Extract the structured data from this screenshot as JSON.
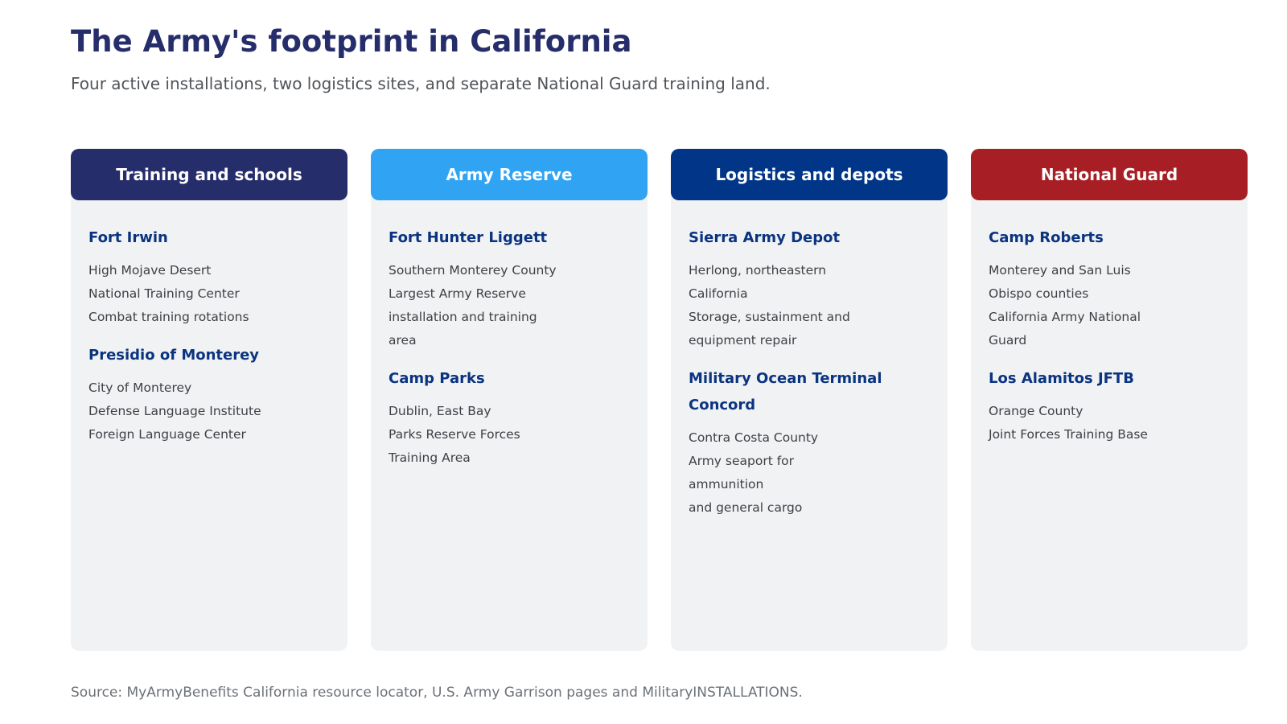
{
  "title": "The Army's footprint in California",
  "subtitle": "Four active installations, two logistics sites, and separate National Guard training land.",
  "columns": [
    {
      "heading": "Training and schools",
      "color": "#262d6b",
      "sites": [
        {
          "name": "Fort Irwin",
          "lines": [
            "High Mojave Desert",
            "National Training Center",
            "Combat training rotations"
          ]
        },
        {
          "name": "Presidio of Monterey",
          "lines": [
            "City of Monterey",
            "Defense Language Institute",
            "Foreign Language Center"
          ]
        }
      ]
    },
    {
      "heading": "Army Reserve",
      "color": "#30a4f2",
      "sites": [
        {
          "name": "Fort Hunter Liggett",
          "lines": [
            "Southern Monterey County",
            "Largest Army Reserve",
            "installation and training",
            "area"
          ]
        },
        {
          "name": "Camp Parks",
          "lines": [
            "Dublin, East Bay",
            "Parks Reserve Forces",
            "Training Area"
          ]
        }
      ]
    },
    {
      "heading": "Logistics and depots",
      "color": "#003588",
      "sites": [
        {
          "name": "Sierra Army Depot",
          "lines": [
            "Herlong, northeastern",
            "California",
            "Storage, sustainment and",
            "equipment repair"
          ]
        },
        {
          "name": "Military Ocean Terminal Concord",
          "lines": [
            "Contra Costa County",
            "Army seaport for",
            "ammunition",
            "and general cargo"
          ]
        }
      ]
    },
    {
      "heading": "National Guard",
      "color": "#a71f24",
      "sites": [
        {
          "name": "Camp Roberts",
          "lines": [
            "Monterey and San Luis",
            "Obispo counties",
            "California Army National",
            "Guard"
          ]
        },
        {
          "name": "Los Alamitos JFTB",
          "lines": [
            "Orange County",
            "Joint Forces Training Base"
          ]
        }
      ]
    }
  ],
  "source": "Source: MyArmyBenefits California resource locator, U.S. Army Garrison pages and MilitaryINSTALLATIONS."
}
